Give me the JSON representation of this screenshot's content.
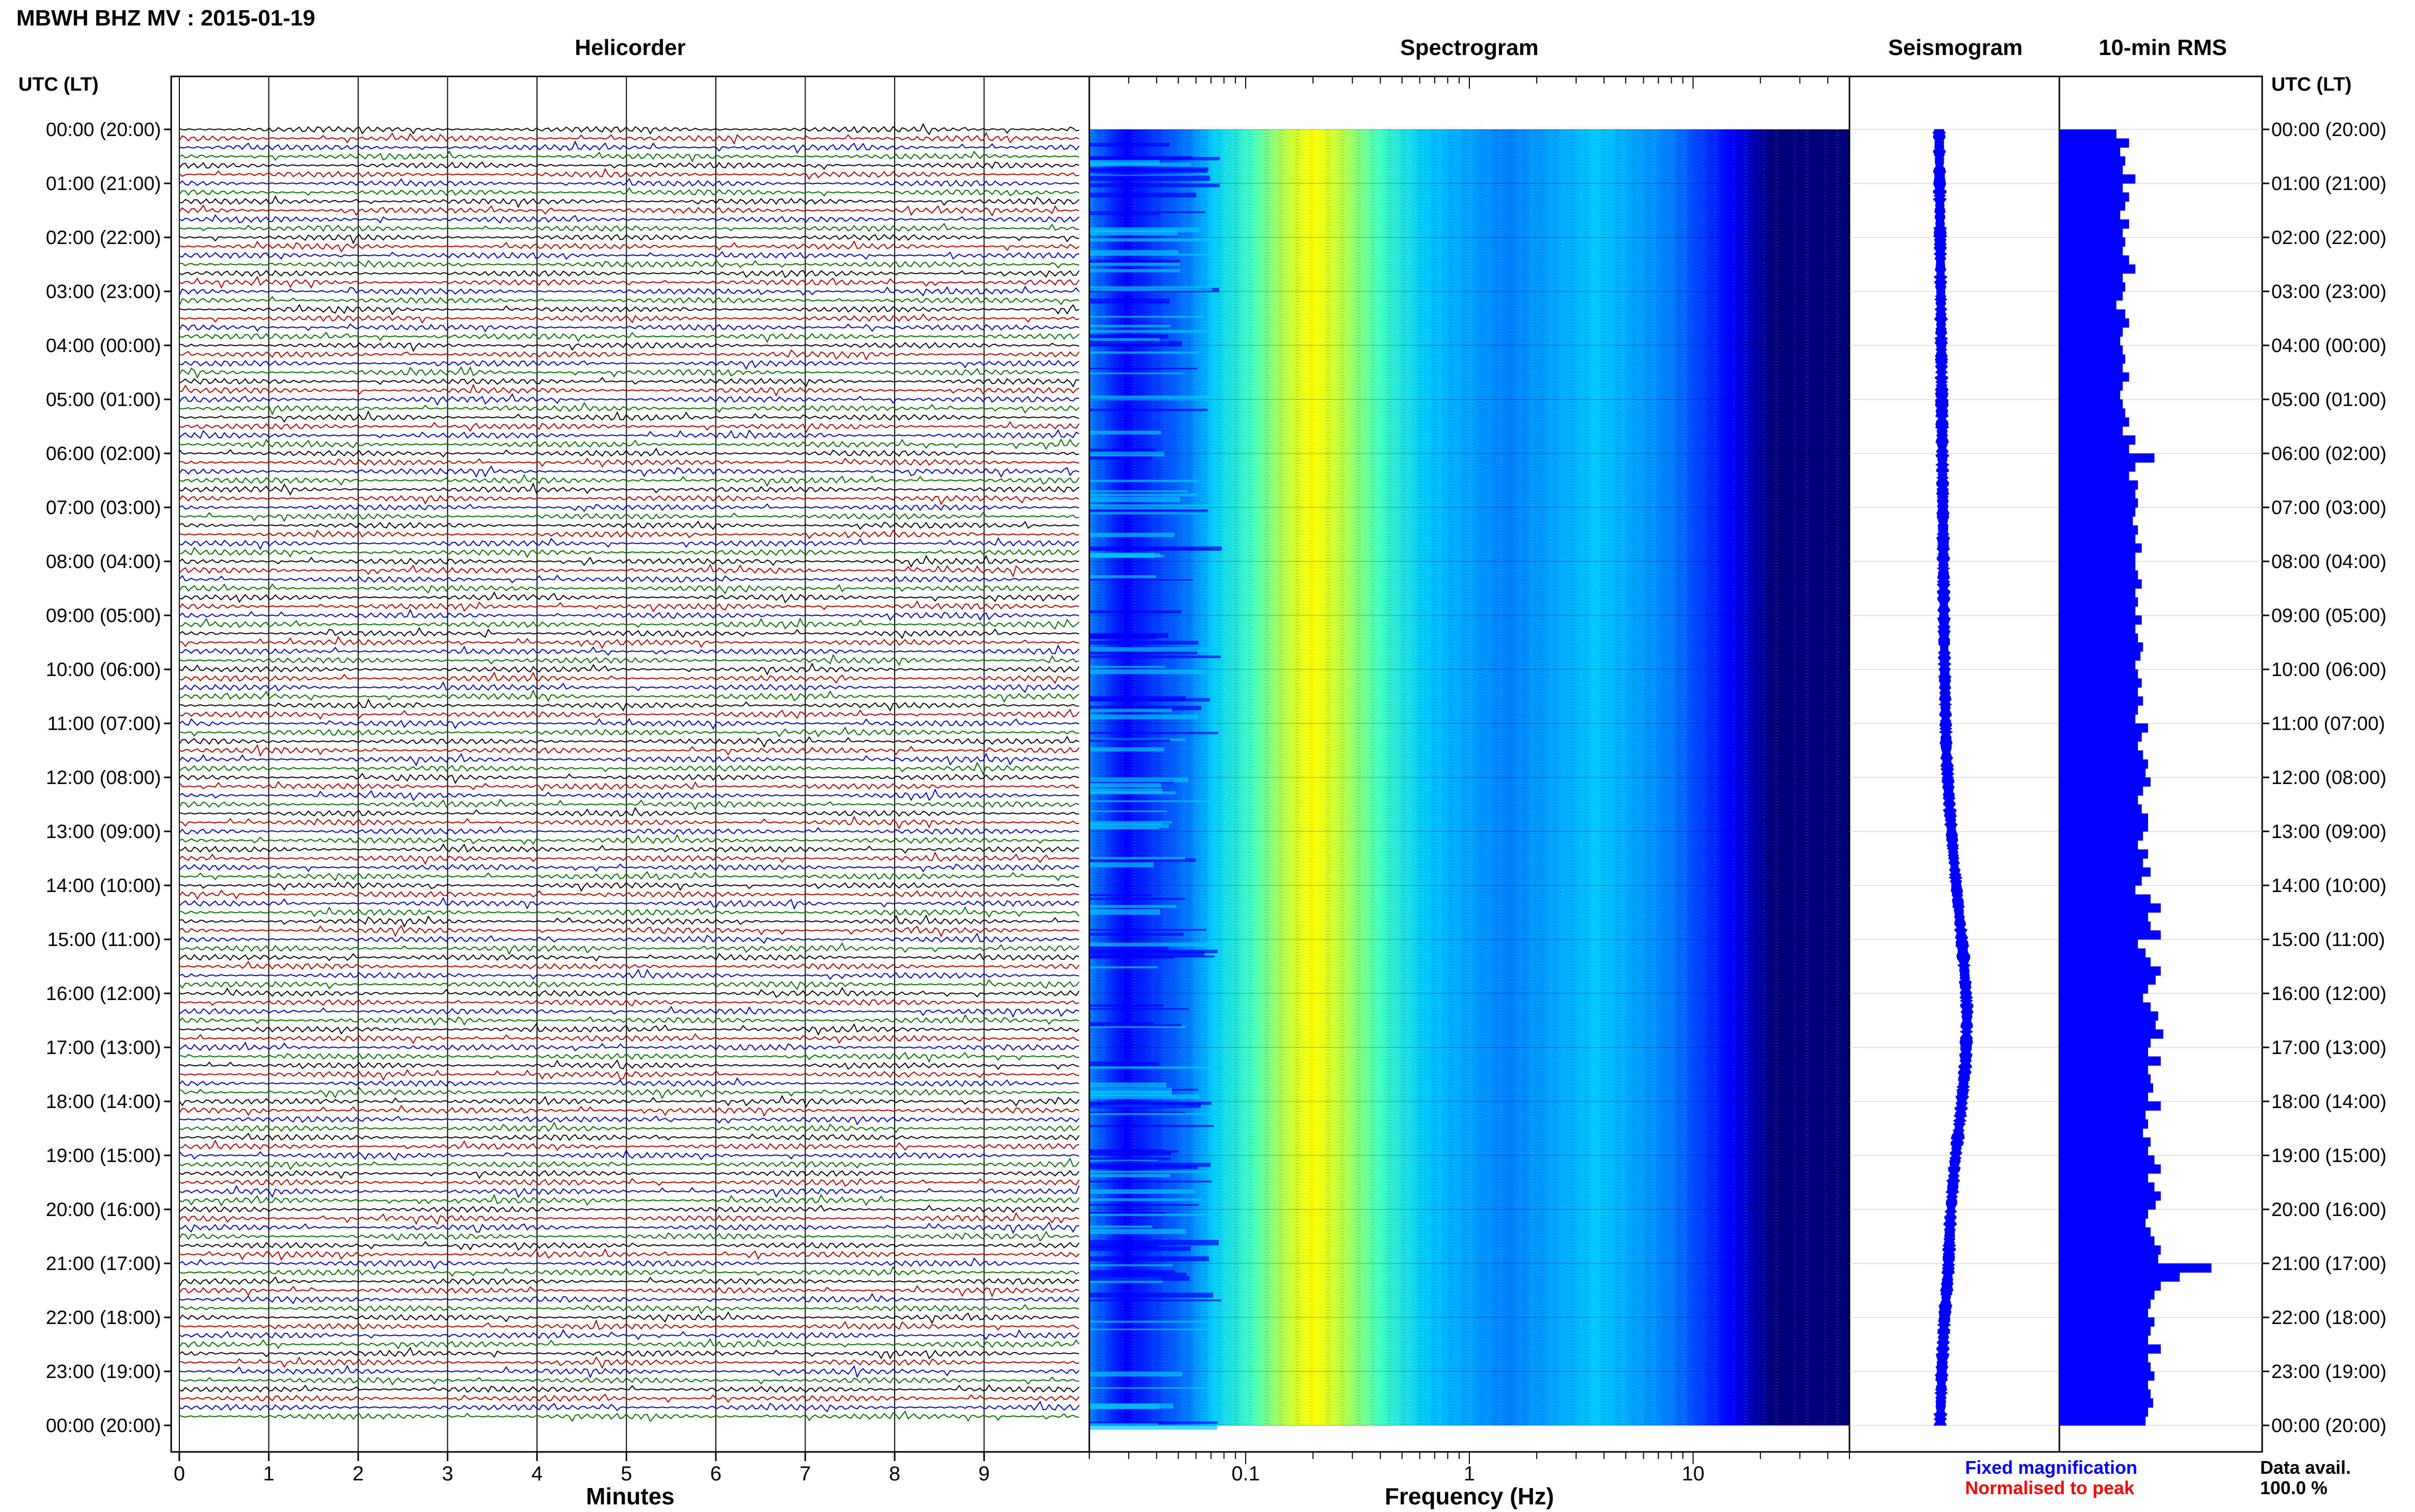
{
  "header": {
    "title": "MBWH BHZ MV : 2015-01-19",
    "utc_left": "UTC (LT)",
    "utc_right": "UTC (LT)"
  },
  "panels": {
    "helicorder": "Helicorder",
    "spectrogram": "Spectrogram",
    "seismogram": "Seismogram",
    "rms": "10-min RMS"
  },
  "chart_data": {
    "type": "heatmap",
    "time_labels": [
      "00:00 (20:00)",
      "01:00 (21:00)",
      "02:00 (22:00)",
      "03:00 (23:00)",
      "04:00 (00:00)",
      "05:00 (01:00)",
      "06:00 (02:00)",
      "07:00 (03:00)",
      "08:00 (04:00)",
      "09:00 (05:00)",
      "10:00 (06:00)",
      "11:00 (07:00)",
      "12:00 (08:00)",
      "13:00 (09:00)",
      "14:00 (10:00)",
      "15:00 (11:00)",
      "16:00 (12:00)",
      "17:00 (13:00)",
      "18:00 (14:00)",
      "19:00 (15:00)",
      "20:00 (16:00)",
      "21:00 (17:00)",
      "22:00 (18:00)",
      "23:00 (19:00)",
      "00:00 (20:00)"
    ],
    "helicorder": {
      "xlabel": "Minutes",
      "x_ticks": [
        "0",
        "1",
        "2",
        "3",
        "4",
        "5",
        "6",
        "7",
        "8",
        "9"
      ],
      "xlim": [
        0,
        10
      ],
      "traces_per_hour": 6,
      "trace_colors": [
        "#000000",
        "#b00000",
        "#0000c0",
        "#007000"
      ]
    },
    "spectrogram": {
      "xlabel": "Frequency (Hz)",
      "x_scale": "log",
      "x_ticks": [
        "0.1",
        "1",
        "10"
      ],
      "xlim": [
        0.02,
        50
      ],
      "peak_frequency_hz": 0.2,
      "colormap": [
        "#00007a",
        "#0000ff",
        "#0080ff",
        "#00c8ff",
        "#40ffc0",
        "#c0ff40",
        "#ffff00",
        "#ff8000"
      ]
    },
    "seismogram": {
      "offset_profile": [
        0.0,
        0.01,
        0.02,
        0.03,
        0.04,
        0.05,
        0.06,
        0.07,
        0.08,
        0.09,
        0.1,
        0.12,
        0.14,
        0.2,
        0.28,
        0.38,
        0.48,
        0.55,
        0.52,
        0.42,
        0.3,
        0.22,
        0.18,
        0.1,
        0.05,
        0.02
      ]
    },
    "rms": {
      "values": [
        0.45,
        0.55,
        0.48,
        0.52,
        0.5,
        0.6,
        0.5,
        0.55,
        0.52,
        0.48,
        0.55,
        0.5,
        0.52,
        0.5,
        0.55,
        0.6,
        0.5,
        0.52,
        0.5,
        0.45,
        0.52,
        0.55,
        0.5,
        0.48,
        0.5,
        0.52,
        0.5,
        0.55,
        0.5,
        0.48,
        0.5,
        0.52,
        0.55,
        0.5,
        0.6,
        0.55,
        0.75,
        0.6,
        0.55,
        0.62,
        0.6,
        0.62,
        0.6,
        0.58,
        0.62,
        0.6,
        0.65,
        0.6,
        0.6,
        0.62,
        0.65,
        0.6,
        0.62,
        0.6,
        0.65,
        0.6,
        0.62,
        0.66,
        0.64,
        0.6,
        0.62,
        0.65,
        0.62,
        0.66,
        0.62,
        0.6,
        0.7,
        0.65,
        0.62,
        0.66,
        0.7,
        0.68,
        0.72,
        0.66,
        0.62,
        0.65,
        0.7,
        0.7,
        0.66,
        0.62,
        0.7,
        0.66,
        0.72,
        0.65,
        0.6,
        0.72,
        0.8,
        0.7,
        0.72,
        0.8,
        0.62,
        0.68,
        0.72,
        0.8,
        0.76,
        0.7,
        0.66,
        0.72,
        0.78,
        0.76,
        0.82,
        0.72,
        0.7,
        0.8,
        0.7,
        0.72,
        0.74,
        0.7,
        0.8,
        0.68,
        0.7,
        0.66,
        0.72,
        0.7,
        0.75,
        0.8,
        0.7,
        0.75,
        0.8,
        0.76,
        0.7,
        0.68,
        0.72,
        0.75,
        0.8,
        0.78,
        1.2,
        0.95,
        0.8,
        0.75,
        0.72,
        0.7,
        0.75,
        0.72,
        0.7,
        0.8,
        0.7,
        0.72,
        0.75,
        0.7,
        0.72,
        0.74,
        0.7,
        0.68
      ],
      "xlim": [
        0,
        1.6
      ],
      "color": "#0000ff"
    },
    "legend": {
      "fixed": "Fixed magnification",
      "normalised": "Normalised to peak",
      "fixed_color": "#0000ff",
      "normalised_color": "#ff0000"
    },
    "data_avail_label": "Data avail.",
    "data_avail_value": "100.0 %"
  }
}
